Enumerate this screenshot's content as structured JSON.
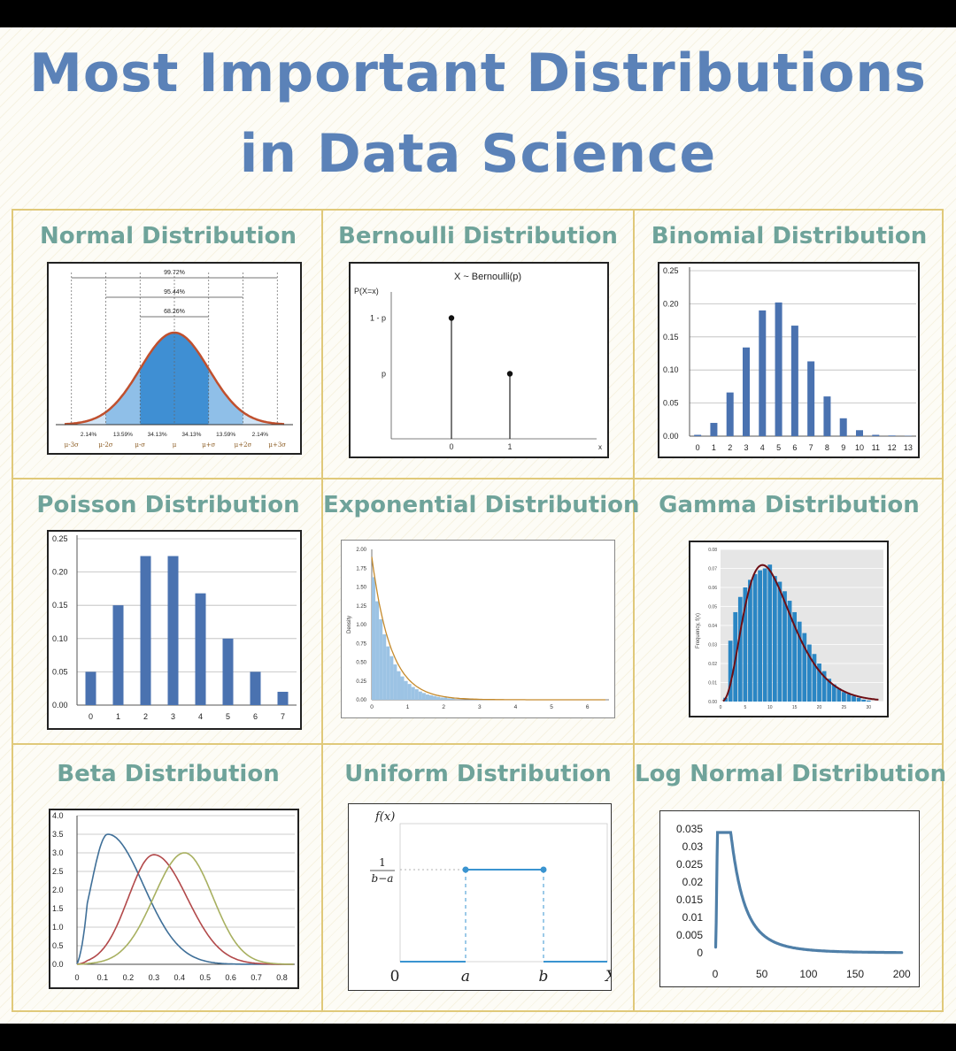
{
  "title": {
    "line1": "Most Important Distributions",
    "line2": "in Data Science"
  },
  "colors": {
    "title": "#5b82b8",
    "heading": "#6fa39a",
    "bar": "#4a72b0",
    "border": "#e0c97a",
    "curve": "#c0392b"
  },
  "charts": {
    "normal": {
      "heading": "Normal Distribution",
      "spans": [
        "99.72%",
        "95.44%",
        "68.26%"
      ],
      "percents": [
        "2.14%",
        "13.59%",
        "34.13%",
        "34.13%",
        "13.59%",
        "2.14%"
      ],
      "ticks": [
        "μ-3σ",
        "μ-2σ",
        "μ-σ",
        "μ",
        "μ+σ",
        "μ+2σ",
        "μ+3σ"
      ]
    },
    "bernoulli": {
      "heading": "Bernoulli Distribution",
      "title": "X ~ Bernoulli(p)",
      "ylabel": "P(X=x)",
      "yticks": [
        "1 - p",
        "p"
      ],
      "xticks": [
        "0",
        "1"
      ],
      "xlabel": "x"
    },
    "binomial": {
      "heading": "Binomial Distribution",
      "yticks": [
        "0.25",
        "0.20",
        "0.15",
        "0.10",
        "0.05",
        "0.00"
      ],
      "xticks": [
        "0",
        "1",
        "2",
        "3",
        "4",
        "5",
        "6",
        "7",
        "8",
        "9",
        "10",
        "11",
        "12",
        "13"
      ]
    },
    "poisson": {
      "heading": "Poisson Distribution",
      "yticks": [
        "0.25",
        "0.20",
        "0.15",
        "0.10",
        "0.05",
        "0.00"
      ],
      "xticks": [
        "0",
        "1",
        "2",
        "3",
        "4",
        "5",
        "6",
        "7"
      ]
    },
    "exponential": {
      "heading": "Exponential Distribution",
      "ylabel": "Density",
      "yticks": [
        "2.00",
        "1.75",
        "1.50",
        "1.25",
        "1.00",
        "0.75",
        "0.50",
        "0.25",
        "0.00"
      ],
      "xticks": [
        "0",
        "1",
        "2",
        "3",
        "4",
        "5",
        "6"
      ]
    },
    "gamma": {
      "heading": "Gamma Distribution",
      "ylabel": "Frequency, f(x)",
      "yticks": [
        "0.08",
        "0.07",
        "0.06",
        "0.05",
        "0.04",
        "0.03",
        "0.02",
        "0.01",
        "0.00"
      ],
      "xticks": [
        "0",
        "5",
        "10",
        "15",
        "20",
        "25",
        "30"
      ]
    },
    "beta": {
      "heading": "Beta Distribution",
      "yticks": [
        "4.0",
        "3.5",
        "3.0",
        "2.5",
        "2.0",
        "1.5",
        "1.0",
        "0.5",
        "0.0"
      ],
      "xticks": [
        "0",
        "0.1",
        "0.2",
        "0.3",
        "0.4",
        "0.5",
        "0.6",
        "0.7",
        "0.8"
      ]
    },
    "uniform": {
      "heading": "Uniform Distribution",
      "ylabel": "f(x)",
      "ynum": "1",
      "yden": "b−a",
      "xticks": [
        "0",
        "a",
        "b"
      ],
      "xlabel": "X"
    },
    "lognormal": {
      "heading": "Log Normal Distribution",
      "yticks": [
        "0.035",
        "0.03",
        "0.025",
        "0.02",
        "0.015",
        "0.01",
        "0.005",
        "0"
      ],
      "xticks": [
        "0",
        "50",
        "100",
        "150",
        "200"
      ]
    }
  },
  "chart_data": [
    {
      "type": "area",
      "title": "Normal Distribution",
      "x": [
        -3,
        -2,
        -1,
        0,
        1,
        2,
        3
      ],
      "series": [
        {
          "values": [
            0.0044,
            0.054,
            0.242,
            0.399,
            0.242,
            0.054,
            0.0044
          ]
        }
      ],
      "region_percents": [
        2.14,
        13.59,
        34.13,
        34.13,
        13.59,
        2.14
      ]
    },
    {
      "type": "bar",
      "title": "Bernoulli Distribution",
      "categories": [
        "0",
        "1"
      ],
      "values": [
        0.65,
        0.35
      ]
    },
    {
      "type": "bar",
      "title": "Binomial Distribution",
      "categories": [
        "0",
        "1",
        "2",
        "3",
        "4",
        "5",
        "6",
        "7",
        "8",
        "9",
        "10",
        "11",
        "12",
        "13"
      ],
      "values": [
        0.002,
        0.02,
        0.066,
        0.134,
        0.19,
        0.202,
        0.167,
        0.113,
        0.06,
        0.027,
        0.009,
        0.002,
        0.001,
        0.0005
      ],
      "ylim": [
        0,
        0.25
      ]
    },
    {
      "type": "bar",
      "title": "Poisson Distribution",
      "categories": [
        "0",
        "1",
        "2",
        "3",
        "4",
        "5",
        "6",
        "7"
      ],
      "values": [
        0.05,
        0.15,
        0.224,
        0.224,
        0.168,
        0.1,
        0.05,
        0.02
      ],
      "ylim": [
        0,
        0.25
      ]
    },
    {
      "type": "bar",
      "title": "Exponential Distribution",
      "ylabel": "Density",
      "x": [
        0.05,
        0.15,
        0.25,
        0.35,
        0.45,
        0.55,
        0.65,
        0.75,
        0.85,
        0.95,
        1.05,
        1.15,
        1.25,
        1.35,
        1.45,
        1.55,
        1.65,
        1.75,
        1.85,
        1.95,
        2.05,
        2.15,
        2.25
      ],
      "values": [
        1.63,
        1.31,
        1.07,
        0.87,
        0.71,
        0.58,
        0.47,
        0.38,
        0.31,
        0.25,
        0.21,
        0.17,
        0.14,
        0.11,
        0.09,
        0.07,
        0.06,
        0.05,
        0.04,
        0.03,
        0.03,
        0.02,
        0.02
      ],
      "ylim": [
        0,
        2.0
      ]
    },
    {
      "type": "bar",
      "title": "Gamma Distribution",
      "ylabel": "Frequency, f(x)",
      "x": [
        1,
        2,
        3,
        4,
        5,
        6,
        7,
        8,
        9,
        10,
        11,
        12,
        13,
        14,
        15,
        16,
        17,
        18,
        19,
        20,
        21,
        22,
        23,
        24,
        25,
        26,
        27,
        28,
        29,
        30
      ],
      "values": [
        0.002,
        0.032,
        0.047,
        0.055,
        0.06,
        0.064,
        0.067,
        0.069,
        0.07,
        0.072,
        0.066,
        0.063,
        0.058,
        0.053,
        0.047,
        0.042,
        0.036,
        0.03,
        0.025,
        0.02,
        0.016,
        0.012,
        0.009,
        0.007,
        0.005,
        0.004,
        0.003,
        0.002,
        0.001,
        0.0005
      ],
      "ylim": [
        0,
        0.08
      ]
    },
    {
      "type": "line",
      "title": "Beta Distribution",
      "series": [
        {
          "peak_x": 0.12,
          "peak_y": 3.5,
          "color": "#3f6f98"
        },
        {
          "peak_x": 0.3,
          "peak_y": 2.95,
          "color": "#b2494a"
        },
        {
          "peak_x": 0.42,
          "peak_y": 3.0,
          "color": "#a8b060"
        }
      ],
      "xlim": [
        0,
        0.85
      ],
      "ylim": [
        0,
        4.0
      ]
    },
    {
      "type": "line",
      "title": "Uniform Distribution",
      "x": [
        "0",
        "a",
        "b",
        "X"
      ],
      "series": [
        {
          "values": [
            0,
            1,
            1,
            0
          ]
        }
      ]
    },
    {
      "type": "line",
      "title": "Log Normal Distribution",
      "x": [
        0,
        5,
        10,
        20,
        40,
        60,
        80,
        100,
        150,
        200
      ],
      "series": [
        {
          "values": [
            0.005,
            0.03,
            0.033,
            0.027,
            0.015,
            0.009,
            0.0065,
            0.0045,
            0.002,
            0.001
          ]
        }
      ],
      "ylim": [
        0,
        0.035
      ]
    }
  ]
}
